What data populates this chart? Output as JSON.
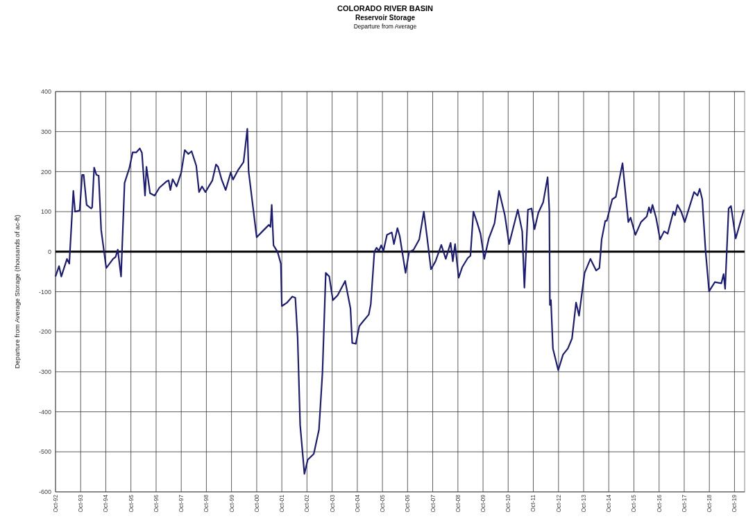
{
  "chart_data": {
    "type": "line",
    "title": "COLORADO RIVER BASIN",
    "subtitle": "Reservoir Storage",
    "annotations": [
      "Departure from Average"
    ],
    "ylabel": "Departure from Average Storage (thousands of ac-ft)",
    "xlim": [
      "1992-10-01",
      "2020-02-25"
    ],
    "xticks": [
      {
        "value": "1992-10-01",
        "label": "Oct-92"
      },
      {
        "value": "1993-10-01",
        "label": "Oct-93"
      },
      {
        "value": "1994-10-01",
        "label": "Oct-94"
      },
      {
        "value": "1995-10-01",
        "label": "Oct-95"
      },
      {
        "value": "1996-10-01",
        "label": "Oct-96"
      },
      {
        "value": "1997-10-01",
        "label": "Oct-97"
      },
      {
        "value": "1998-10-01",
        "label": "Oct-98"
      },
      {
        "value": "1999-10-01",
        "label": "Oct-99"
      },
      {
        "value": "2000-10-01",
        "label": "Oct-00"
      },
      {
        "value": "2001-10-01",
        "label": "Oct-01"
      },
      {
        "value": "2002-10-01",
        "label": "Oct-02"
      },
      {
        "value": "2003-10-01",
        "label": "Oct-03"
      },
      {
        "value": "2004-10-01",
        "label": "Oct-04"
      },
      {
        "value": "2005-10-01",
        "label": "Oct-05"
      },
      {
        "value": "2006-10-01",
        "label": "Oct-06"
      },
      {
        "value": "2007-10-01",
        "label": "Oct-07"
      },
      {
        "value": "2008-10-01",
        "label": "Oct-08"
      },
      {
        "value": "2009-10-01",
        "label": "Oct-09"
      },
      {
        "value": "2010-10-01",
        "label": "Oct-10"
      },
      {
        "value": "2011-10-01",
        "label": "Oct-11"
      },
      {
        "value": "2012-10-01",
        "label": "Oct-12"
      },
      {
        "value": "2013-10-01",
        "label": "Oct-13"
      },
      {
        "value": "2014-10-01",
        "label": "Oct-14"
      },
      {
        "value": "2015-10-01",
        "label": "Oct-15"
      },
      {
        "value": "2016-10-01",
        "label": "Oct-16"
      },
      {
        "value": "2017-10-01",
        "label": "Oct-17"
      },
      {
        "value": "2018-10-01",
        "label": "Oct-18"
      },
      {
        "value": "2019-10-01",
        "label": "Oct-19"
      }
    ],
    "ylim": [
      -600,
      400
    ],
    "yticks": [
      -600,
      -500,
      -400,
      -300,
      -200,
      -100,
      0,
      100,
      200,
      300,
      400
    ],
    "grid": true,
    "ref_lines": [
      {
        "axis": "y",
        "value": 0,
        "color": "#000000"
      }
    ],
    "series": [
      {
        "color": "#1c1c78",
        "x": [
          "1992-10-01",
          "1992-11-21",
          "1992-12-24",
          "1993-03-17",
          "1993-04-19",
          "1993-06-17",
          "1993-07-12",
          "1993-09-17",
          "1993-10-23",
          "1993-11-14",
          "1993-12-27",
          "1994-03-02",
          "1994-03-17",
          "1994-04-15",
          "1994-05-18",
          "1994-06-20",
          "1994-07-26",
          "1994-10-08",
          "1995-01-15",
          "1995-02-21",
          "1995-03-24",
          "1995-05-11",
          "1995-07-01",
          "1995-09-09",
          "1995-10-26",
          "1995-12-17",
          "1996-02-07",
          "1996-03-09",
          "1996-04-23",
          "1996-05-14",
          "1996-07-05",
          "1996-09-09",
          "1996-11-18",
          "1997-02-25",
          "1997-04-01",
          "1997-04-26",
          "1997-05-29",
          "1997-07-26",
          "1997-10-01",
          "1997-11-21",
          "1998-01-12",
          "1998-02-28",
          "1998-05-07",
          "1998-06-17",
          "1998-07-30",
          "1998-09-17",
          "1998-12-27",
          "1999-02-18",
          "1999-03-20",
          "1999-05-11",
          "1999-07-08",
          "1999-09-20",
          "1999-10-23",
          "2000-01-01",
          "2000-03-24",
          "2000-05-18",
          "2000-06-06",
          "2000-10-01",
          "2000-12-24",
          "2001-03-27",
          "2001-04-19",
          "2001-05-07",
          "2001-06-02",
          "2001-07-30",
          "2001-09-17",
          "2001-10-01",
          "2001-12-17",
          "2002-03-02",
          "2002-04-15",
          "2002-05-18",
          "2002-06-24",
          "2002-08-25",
          "2002-10-12",
          "2003-01-08",
          "2003-03-24",
          "2003-05-14",
          "2003-07-01",
          "2003-08-21",
          "2003-10-12",
          "2003-12-20",
          "2004-04-08",
          "2004-06-24",
          "2004-07-19",
          "2004-09-09",
          "2004-10-30",
          "2004-12-24",
          "2005-03-17",
          "2005-04-15",
          "2005-06-06",
          "2005-07-08",
          "2005-08-11",
          "2005-09-13",
          "2005-10-15",
          "2005-12-06",
          "2006-02-14",
          "2006-03-17",
          "2006-05-07",
          "2006-06-09",
          "2006-09-02",
          "2006-10-23",
          "2006-12-27",
          "2007-03-20",
          "2007-05-25",
          "2007-07-05",
          "2007-09-06",
          "2007-11-11",
          "2008-02-03",
          "2008-04-08",
          "2008-06-17",
          "2008-07-19",
          "2008-08-21",
          "2008-10-12",
          "2008-12-02",
          "2009-02-21",
          "2009-04-01",
          "2009-05-14",
          "2009-07-05",
          "2009-08-25",
          "2009-10-19",
          "2009-12-24",
          "2010-03-17",
          "2010-05-21",
          "2010-08-14",
          "2010-10-15",
          "2011-02-18",
          "2011-04-23",
          "2011-05-25",
          "2011-07-15",
          "2011-09-06",
          "2011-10-19",
          "2011-12-13",
          "2012-02-21",
          "2012-04-26",
          "2012-05-21",
          "2012-05-29",
          "2012-06-13",
          "2012-07-12",
          "2012-09-27",
          "2012-12-06",
          "2013-02-14",
          "2013-04-15",
          "2013-06-13",
          "2013-07-26",
          "2013-10-15",
          "2014-01-08",
          "2014-04-01",
          "2014-05-18",
          "2014-06-20",
          "2014-08-11",
          "2014-09-02",
          "2014-11-21",
          "2015-01-12",
          "2015-04-19",
          "2015-07-12",
          "2015-08-14",
          "2015-10-23",
          "2016-01-12",
          "2016-04-05",
          "2016-05-07",
          "2016-06-02",
          "2016-06-27",
          "2016-08-18",
          "2016-10-15",
          "2016-12-13",
          "2017-02-03",
          "2017-04-26",
          "2017-05-21",
          "2017-06-24",
          "2017-08-18",
          "2017-10-08",
          "2018-02-21",
          "2018-04-12",
          "2018-05-14",
          "2018-06-20",
          "2018-08-07",
          "2018-09-27",
          "2018-12-20",
          "2019-03-24",
          "2019-04-26",
          "2019-05-18",
          "2019-07-08",
          "2019-08-11",
          "2019-10-19",
          "2020-02-14"
        ],
        "values": [
          -62,
          -36,
          -62,
          -18,
          -30,
          152,
          100,
          103,
          192,
          192,
          117,
          108,
          111,
          210,
          192,
          190,
          54,
          -41,
          -18,
          -13,
          5,
          -62,
          172,
          209,
          248,
          248,
          258,
          247,
          140,
          212,
          146,
          140,
          160,
          175,
          178,
          154,
          181,
          163,
          198,
          254,
          244,
          251,
          215,
          149,
          163,
          149,
          178,
          218,
          212,
          180,
          154,
          198,
          180,
          203,
          224,
          307,
          200,
          36,
          51,
          67,
          62,
          117,
          16,
          0,
          -30,
          -136,
          -127,
          -112,
          -115,
          -213,
          -433,
          -555,
          -520,
          -505,
          -445,
          -302,
          -53,
          -62,
          -121,
          -109,
          -73,
          -142,
          -228,
          -230,
          -186,
          -174,
          -157,
          -131,
          0,
          10,
          2,
          16,
          2,
          42,
          48,
          19,
          59,
          39,
          -53,
          -1,
          5,
          31,
          100,
          45,
          -44,
          -24,
          17,
          -18,
          22,
          -24,
          19,
          -65,
          -39,
          -16,
          -10,
          100,
          74,
          45,
          -18,
          33,
          71,
          152,
          91,
          19,
          105,
          51,
          -90,
          105,
          108,
          56,
          97,
          123,
          186,
          103,
          -133,
          -121,
          -242,
          -296,
          -257,
          -242,
          -217,
          -127,
          -160,
          -53,
          -18,
          -47,
          -41,
          31,
          77,
          77,
          131,
          137,
          221,
          74,
          85,
          42,
          74,
          88,
          111,
          97,
          117,
          85,
          31,
          51,
          45,
          100,
          91,
          117,
          100,
          74,
          149,
          140,
          157,
          131,
          2,
          -99,
          -76,
          -79,
          -56,
          -93,
          108,
          114,
          33,
          105
        ]
      }
    ]
  }
}
